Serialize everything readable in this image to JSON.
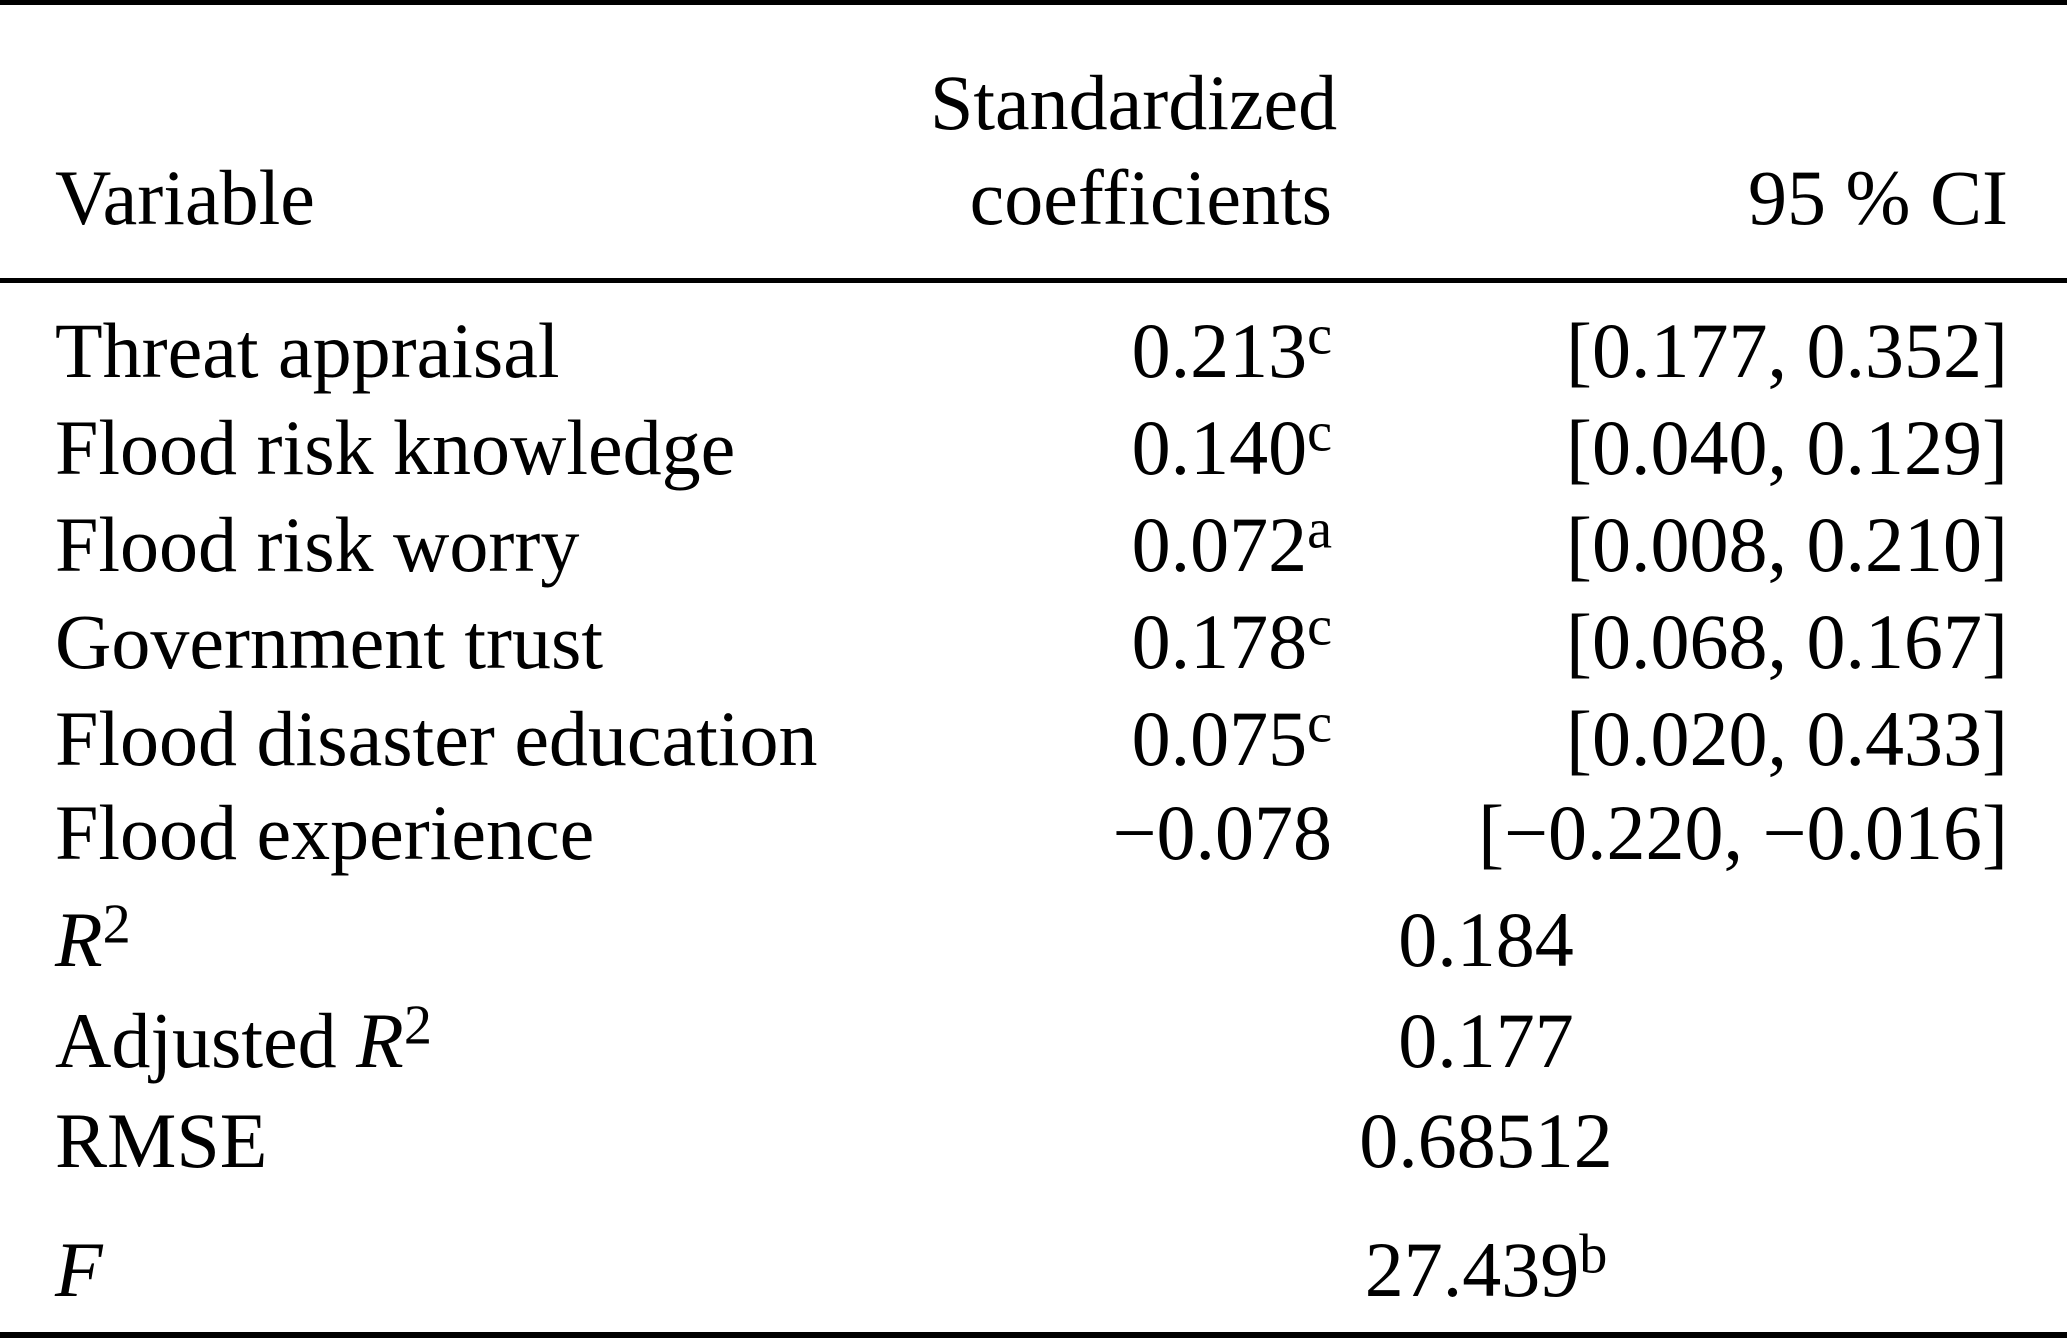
{
  "table": {
    "header": {
      "variable": "Variable",
      "coef_line1": "Standardized",
      "coef_line2": "coefficients",
      "ci": "95 % CI"
    },
    "rows": [
      {
        "variable": "Threat appraisal",
        "coef": "0.213",
        "coef_sup": "c",
        "ci": "[0.177, 0.352]"
      },
      {
        "variable": "Flood risk knowledge",
        "coef": "0.140",
        "coef_sup": "c",
        "ci": "[0.040, 0.129]"
      },
      {
        "variable": "Flood risk worry",
        "coef": "0.072",
        "coef_sup": "a",
        "ci": "[0.008, 0.210]"
      },
      {
        "variable": "Government trust",
        "coef": "0.178",
        "coef_sup": "c",
        "ci": "[0.068, 0.167]"
      },
      {
        "variable": "Flood disaster education",
        "coef": "0.075",
        "coef_sup": "c",
        "ci": "[0.020, 0.433]"
      },
      {
        "variable": "Flood experience",
        "coef": "−0.078",
        "coef_sup": "",
        "ci": "[−0.220, −0.016]"
      }
    ],
    "stats": [
      {
        "label_prefix": "",
        "label_italic": "R",
        "label_sup": "2",
        "value": "0.184",
        "value_sup": ""
      },
      {
        "label_prefix": "Adjusted ",
        "label_italic": "R",
        "label_sup": "2",
        "value": "0.177",
        "value_sup": ""
      },
      {
        "label_prefix": "RMSE",
        "label_italic": "",
        "label_sup": "",
        "value": "0.68512",
        "value_sup": ""
      },
      {
        "label_prefix": "",
        "label_italic": "F",
        "label_sup": "",
        "value": "27.439",
        "value_sup": "b"
      }
    ]
  },
  "colors": {
    "background": "#ffffff",
    "text": "#000000",
    "rule": "#000000"
  }
}
